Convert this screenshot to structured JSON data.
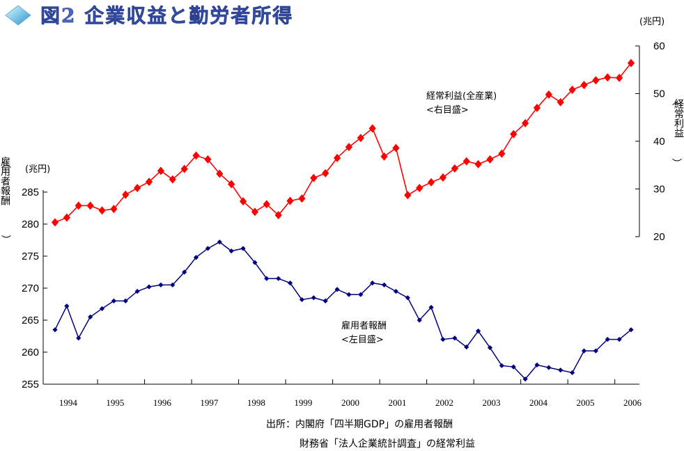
{
  "title": "図2 企業収益と勤労者所得",
  "colors": {
    "profit": "#ff0000",
    "comp": "#000080",
    "title": "#4a67c8"
  },
  "chart_data": {
    "type": "line",
    "title": "図2 企業収益と勤労者所得",
    "x_tick_labels": [
      "1994",
      "1995",
      "1996",
      "1997",
      "1998",
      "1999",
      "2000",
      "2001",
      "2002",
      "2003",
      "2004",
      "2005",
      "2006"
    ],
    "left_axis": {
      "label": "雇用者報酬",
      "unit": "(兆円)",
      "ylim": [
        255,
        290
      ],
      "ticks": [
        255,
        260,
        265,
        270,
        275,
        280,
        285
      ]
    },
    "right_axis": {
      "label": "経常利益",
      "unit": "(兆円)",
      "ylim": [
        20,
        60
      ],
      "ticks": [
        20,
        30,
        40,
        50,
        60
      ]
    },
    "x": [
      "1994Q1",
      "1994Q2",
      "1994Q3",
      "1994Q4",
      "1995Q1",
      "1995Q2",
      "1995Q3",
      "1995Q4",
      "1996Q1",
      "1996Q2",
      "1996Q3",
      "1996Q4",
      "1997Q1",
      "1997Q2",
      "1997Q3",
      "1997Q4",
      "1998Q1",
      "1998Q2",
      "1998Q3",
      "1998Q4",
      "1999Q1",
      "1999Q2",
      "1999Q3",
      "1999Q4",
      "2000Q1",
      "2000Q2",
      "2000Q3",
      "2000Q4",
      "2001Q1",
      "2001Q2",
      "2001Q3",
      "2001Q4",
      "2002Q1",
      "2002Q2",
      "2002Q3",
      "2002Q4",
      "2003Q1",
      "2003Q2",
      "2003Q3",
      "2003Q4",
      "2004Q1",
      "2004Q2",
      "2004Q3",
      "2004Q4",
      "2005Q1",
      "2005Q2",
      "2005Q3",
      "2005Q4",
      "2006Q1",
      "2006Q2"
    ],
    "series": [
      {
        "name": "経常利益(全産業)",
        "axis": "right",
        "marker": "diamond",
        "annotation": [
          "経常利益(全産業)",
          "<右目盛>"
        ],
        "values": [
          23.0,
          24.0,
          26.5,
          26.5,
          25.5,
          25.8,
          28.8,
          30.2,
          31.5,
          33.8,
          32.0,
          34.2,
          37.0,
          36.2,
          33.2,
          31.0,
          27.4,
          25.2,
          26.8,
          24.5,
          27.5,
          28.0,
          32.3,
          33.3,
          36.5,
          38.8,
          40.7,
          42.7,
          36.8,
          38.6,
          28.7,
          30.2,
          31.4,
          32.4,
          34.3,
          35.8,
          35.2,
          36.2,
          37.4,
          41.5,
          43.8,
          47.0,
          49.8,
          48.2,
          50.8,
          51.8,
          52.8,
          53.4,
          53.3,
          56.4
        ]
      },
      {
        "name": "雇用者報酬",
        "axis": "left",
        "marker": "small-diamond",
        "annotation": [
          "雇用者報酬",
          "<左目盛>"
        ],
        "values": [
          263.5,
          267.2,
          262.2,
          265.5,
          266.8,
          268.0,
          268.0,
          269.5,
          270.2,
          270.5,
          270.5,
          272.5,
          274.8,
          276.2,
          277.2,
          275.8,
          276.2,
          274.0,
          271.5,
          271.5,
          270.8,
          268.2,
          268.5,
          268.0,
          269.8,
          269.0,
          269.0,
          270.8,
          270.5,
          269.5,
          268.5,
          265.0,
          267.0,
          262.0,
          262.2,
          260.8,
          263.3,
          260.7,
          257.9,
          257.7,
          255.8,
          258.0,
          257.6,
          257.2,
          256.8,
          260.2,
          260.2,
          262.0,
          262.0,
          263.5
        ]
      }
    ],
    "source": [
      "出所：内閣府「四半期GDP」の雇用者報酬",
      "財務省「法人企業統計調査」の経常利益"
    ]
  }
}
